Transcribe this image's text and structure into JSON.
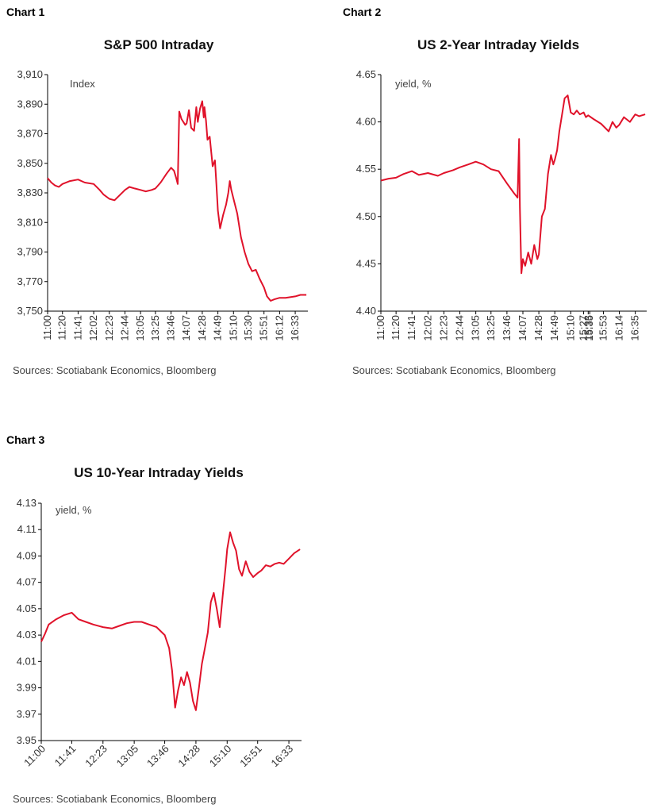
{
  "chart_data": [
    {
      "label": "Chart 1",
      "type": "line",
      "title": "S&P 500 Intraday",
      "unit_label": "Index",
      "ylim": [
        3750,
        3910
      ],
      "yticks": [
        "3,910",
        "3,890",
        "3,870",
        "3,850",
        "3,830",
        "3,810",
        "3,790",
        "3,770",
        "3,750"
      ],
      "ytick_values": [
        3910,
        3890,
        3870,
        3850,
        3830,
        3810,
        3790,
        3770,
        3750
      ],
      "xticks": [
        "11:00",
        "11:20",
        "11:41",
        "12:02",
        "12:23",
        "12:44",
        "13:05",
        "13:25",
        "13:46",
        "14:07",
        "14:28",
        "14:49",
        "15:10",
        "15:30",
        "15:51",
        "16:12",
        "16:33"
      ],
      "xlim": [
        "11:00",
        "16:50"
      ],
      "source": "Sources: Scotiabank Economics, Bloomberg",
      "series": [
        {
          "x": [
            "11:00",
            "11:05",
            "11:10",
            "11:15",
            "11:20",
            "11:30",
            "11:41",
            "11:50",
            "12:02",
            "12:10",
            "12:15",
            "12:23",
            "12:30",
            "12:38",
            "12:44",
            "12:50",
            "12:57",
            "13:05",
            "13:12",
            "13:20",
            "13:25",
            "13:32",
            "13:40",
            "13:46",
            "13:50",
            "13:53",
            "13:55",
            "13:57",
            "14:00",
            "14:05",
            "14:07",
            "14:10",
            "14:13",
            "14:17",
            "14:20",
            "14:22",
            "14:25",
            "14:28",
            "14:30",
            "14:31",
            "14:33",
            "14:35",
            "14:38",
            "14:42",
            "14:45",
            "14:47",
            "14:49",
            "14:52",
            "14:56",
            "15:00",
            "15:03",
            "15:05",
            "15:07",
            "15:10",
            "15:15",
            "15:20",
            "15:25",
            "15:30",
            "15:35",
            "15:40",
            "15:45",
            "15:51",
            "15:55",
            "16:00",
            "16:05",
            "16:12",
            "16:20",
            "16:33",
            "16:40",
            "16:48"
          ],
          "y": [
            3840,
            3837,
            3835,
            3834,
            3836,
            3838,
            3839,
            3837,
            3836,
            3832,
            3829,
            3826,
            3825,
            3829,
            3832,
            3834,
            3833,
            3832,
            3831,
            3832,
            3833,
            3837,
            3843,
            3847,
            3845,
            3840,
            3836,
            3885,
            3880,
            3876,
            3877,
            3886,
            3874,
            3872,
            3888,
            3878,
            3887,
            3892,
            3881,
            3888,
            3879,
            3866,
            3868,
            3848,
            3852,
            3836,
            3818,
            3806,
            3815,
            3822,
            3830,
            3838,
            3832,
            3826,
            3816,
            3800,
            3790,
            3782,
            3777,
            3778,
            3772,
            3766,
            3760,
            3757,
            3758,
            3759,
            3759,
            3760,
            3761,
            3761
          ]
        }
      ]
    },
    {
      "label": "Chart 2",
      "type": "line",
      "title": "US 2-Year Intraday Yields",
      "unit_label": "yield, %",
      "ylim": [
        4.4,
        4.65
      ],
      "yticks": [
        "4.65",
        "4.60",
        "4.55",
        "4.50",
        "4.45",
        "4.40"
      ],
      "ytick_values": [
        4.65,
        4.6,
        4.55,
        4.5,
        4.45,
        4.4
      ],
      "xticks": [
        "11:00",
        "11:20",
        "11:41",
        "12:02",
        "12:23",
        "12:44",
        "13:05",
        "13:25",
        "13:46",
        "14:07",
        "14:28",
        "14:49",
        "15:10",
        "15:27",
        "15:33",
        "15:35",
        "15:53",
        "16:14",
        "16:35"
      ],
      "xlim": [
        "11:00",
        "16:50"
      ],
      "source": "Sources: Scotiabank Economics, Bloomberg",
      "series": [
        {
          "x": [
            "11:00",
            "11:10",
            "11:20",
            "11:30",
            "11:41",
            "11:50",
            "12:02",
            "12:15",
            "12:23",
            "12:35",
            "12:44",
            "12:55",
            "13:05",
            "13:15",
            "13:25",
            "13:35",
            "13:46",
            "13:55",
            "14:00",
            "14:02",
            "14:03",
            "14:04",
            "14:05",
            "14:07",
            "14:10",
            "14:14",
            "14:18",
            "14:22",
            "14:26",
            "14:28",
            "14:32",
            "14:36",
            "14:40",
            "14:44",
            "14:47",
            "14:49",
            "14:52",
            "14:55",
            "14:58",
            "15:02",
            "15:06",
            "15:10",
            "15:14",
            "15:18",
            "15:22",
            "15:27",
            "15:30",
            "15:33",
            "15:40",
            "15:50",
            "16:00",
            "16:05",
            "16:10",
            "16:14",
            "16:20",
            "16:28",
            "16:35",
            "16:40",
            "16:48"
          ],
          "y": [
            4.538,
            4.54,
            4.541,
            4.545,
            4.548,
            4.544,
            4.546,
            4.543,
            4.546,
            4.549,
            4.552,
            4.555,
            4.558,
            4.555,
            4.55,
            4.548,
            4.535,
            4.525,
            4.52,
            4.582,
            4.51,
            4.475,
            4.44,
            4.455,
            4.448,
            4.462,
            4.45,
            4.47,
            4.455,
            4.46,
            4.5,
            4.508,
            4.545,
            4.565,
            4.555,
            4.56,
            4.57,
            4.59,
            4.605,
            4.625,
            4.628,
            4.61,
            4.608,
            4.612,
            4.608,
            4.61,
            4.605,
            4.607,
            4.603,
            4.598,
            4.59,
            4.6,
            4.594,
            4.597,
            4.605,
            4.6,
            4.608,
            4.606,
            4.608
          ]
        }
      ]
    },
    {
      "label": "Chart 3",
      "type": "line",
      "title": "US 10-Year Intraday Yields",
      "unit_label": "yield, %",
      "ylim": [
        3.95,
        4.13
      ],
      "yticks": [
        "4.13",
        "4.11",
        "4.09",
        "4.07",
        "4.05",
        "4.03",
        "4.01",
        "3.99",
        "3.97",
        "3.95"
      ],
      "ytick_values": [
        4.13,
        4.11,
        4.09,
        4.07,
        4.05,
        4.03,
        4.01,
        3.99,
        3.97,
        3.95
      ],
      "xticks": [
        "11:00",
        "11:41",
        "12:23",
        "13:05",
        "13:46",
        "14:28",
        "15:10",
        "15:51",
        "16:33"
      ],
      "xlim": [
        "11:00",
        "16:50"
      ],
      "source": "Sources: Scotiabank Economics, Bloomberg",
      "series": [
        {
          "x": [
            "11:00",
            "11:05",
            "11:10",
            "11:20",
            "11:30",
            "11:41",
            "11:50",
            "12:00",
            "12:10",
            "12:23",
            "12:35",
            "12:45",
            "12:55",
            "13:05",
            "13:15",
            "13:25",
            "13:35",
            "13:46",
            "13:52",
            "13:56",
            "14:00",
            "14:04",
            "14:08",
            "14:12",
            "14:16",
            "14:20",
            "14:24",
            "14:28",
            "14:32",
            "14:36",
            "14:40",
            "14:44",
            "14:48",
            "14:52",
            "14:56",
            "15:00",
            "15:04",
            "15:08",
            "15:10",
            "15:14",
            "15:18",
            "15:22",
            "15:26",
            "15:30",
            "15:35",
            "15:40",
            "15:45",
            "15:51",
            "15:56",
            "16:02",
            "16:08",
            "16:14",
            "16:20",
            "16:26",
            "16:33",
            "16:40",
            "16:48"
          ],
          "y": [
            4.025,
            4.031,
            4.038,
            4.042,
            4.045,
            4.047,
            4.042,
            4.04,
            4.038,
            4.036,
            4.035,
            4.037,
            4.039,
            4.04,
            4.04,
            4.038,
            4.036,
            4.03,
            4.02,
            4.003,
            3.975,
            3.988,
            3.998,
            3.992,
            4.002,
            3.994,
            3.98,
            3.973,
            3.99,
            4.008,
            4.02,
            4.032,
            4.055,
            4.062,
            4.05,
            4.036,
            4.06,
            4.082,
            4.095,
            4.108,
            4.1,
            4.094,
            4.08,
            4.075,
            4.086,
            4.078,
            4.074,
            4.077,
            4.079,
            4.083,
            4.082,
            4.084,
            4.085,
            4.084,
            4.088,
            4.092,
            4.095
          ]
        }
      ]
    }
  ]
}
